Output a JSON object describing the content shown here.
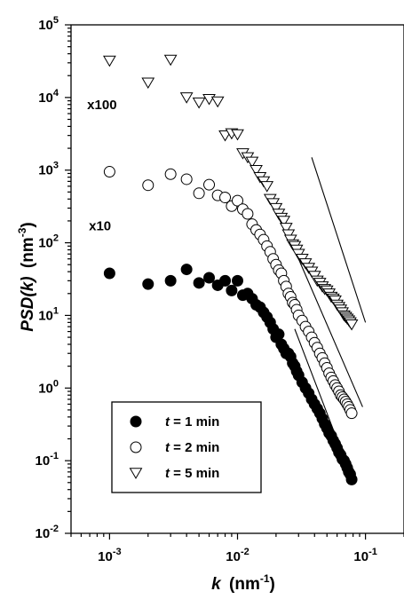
{
  "chart_data": {
    "type": "scatter",
    "title": "",
    "xlabel_var": "k",
    "xlabel_unit": "(nm",
    "xlabel_exp": "-1",
    "xlabel_close": ")",
    "ylabel_var": "PSD(k)",
    "ylabel_unit": "(nm",
    "ylabel_exp": "-3",
    "ylabel_close": ")",
    "x_scale": "log",
    "y_scale": "log",
    "xlim": [
      0.0005,
      0.2
    ],
    "ylim": [
      0.01,
      100000
    ],
    "x_ticks": [
      {
        "value": 0.001,
        "base": "10",
        "exp": "-3"
      },
      {
        "value": 0.01,
        "base": "10",
        "exp": "-2"
      },
      {
        "value": 0.1,
        "base": "10",
        "exp": "-1"
      }
    ],
    "y_ticks": [
      {
        "value": 0.01,
        "base": "10",
        "exp": "-2"
      },
      {
        "value": 0.1,
        "base": "10",
        "exp": "-1"
      },
      {
        "value": 1,
        "base": "10",
        "exp": "0"
      },
      {
        "value": 10,
        "base": "10",
        "exp": "1"
      },
      {
        "value": 100,
        "base": "10",
        "exp": "2"
      },
      {
        "value": 1000,
        "base": "10",
        "exp": "3"
      },
      {
        "value": 10000,
        "base": "10",
        "exp": "4"
      },
      {
        "value": 100000,
        "base": "10",
        "exp": "5"
      }
    ],
    "grid": false,
    "legend": {
      "placement": "bottom-left",
      "entries": [
        {
          "var": "t",
          "text": " = 1 min",
          "marker": "filled-circle"
        },
        {
          "var": "t",
          "text": " = 2 min",
          "marker": "open-circle"
        },
        {
          "var": "t",
          "text": " = 5 min",
          "marker": "open-triangle-down"
        }
      ]
    },
    "annotations": [
      {
        "text": "x100",
        "x": 0.00095,
        "y": 8000
      },
      {
        "text": "x10",
        "x": 0.00098,
        "y": 170
      }
    ],
    "series": [
      {
        "marker": "filled-circle",
        "x": [
          0.001,
          0.002,
          0.003,
          0.004,
          0.005,
          0.006,
          0.007,
          0.008,
          0.009,
          0.01,
          0.011,
          0.012,
          0.013,
          0.014,
          0.015,
          0.016,
          0.017,
          0.018,
          0.019,
          0.02,
          0.021,
          0.022,
          0.023,
          0.024,
          0.025,
          0.026,
          0.027,
          0.028,
          0.029,
          0.03,
          0.032,
          0.034,
          0.036,
          0.038,
          0.04,
          0.042,
          0.044,
          0.046,
          0.048,
          0.05,
          0.052,
          0.054,
          0.056,
          0.058,
          0.06,
          0.062,
          0.064,
          0.066,
          0.068,
          0.07,
          0.072,
          0.074,
          0.076,
          0.078
        ],
        "y": [
          38,
          27,
          30,
          43,
          28,
          33,
          26,
          30,
          22,
          30,
          19,
          20,
          17,
          14,
          13,
          11,
          9.5,
          8,
          6.5,
          5,
          5.5,
          4,
          3.5,
          3,
          3,
          2.7,
          2.2,
          2,
          1.7,
          1.5,
          1.2,
          1,
          0.85,
          0.7,
          0.6,
          0.52,
          0.45,
          0.38,
          0.32,
          0.28,
          0.24,
          0.22,
          0.19,
          0.17,
          0.15,
          0.13,
          0.12,
          0.105,
          0.1,
          0.09,
          0.08,
          0.07,
          0.065,
          0.055
        ]
      },
      {
        "marker": "open-circle",
        "x": [
          0.001,
          0.002,
          0.003,
          0.004,
          0.005,
          0.006,
          0.007,
          0.008,
          0.009,
          0.01,
          0.011,
          0.012,
          0.013,
          0.014,
          0.015,
          0.016,
          0.017,
          0.018,
          0.019,
          0.02,
          0.021,
          0.022,
          0.023,
          0.024,
          0.025,
          0.026,
          0.027,
          0.028,
          0.029,
          0.03,
          0.032,
          0.034,
          0.036,
          0.038,
          0.04,
          0.042,
          0.044,
          0.046,
          0.048,
          0.05,
          0.052,
          0.054,
          0.056,
          0.058,
          0.06,
          0.062,
          0.064,
          0.066,
          0.068,
          0.07,
          0.072,
          0.074,
          0.076,
          0.078
        ],
        "y": [
          950,
          620,
          880,
          750,
          480,
          630,
          450,
          420,
          320,
          380,
          290,
          250,
          180,
          150,
          130,
          110,
          90,
          75,
          60,
          50,
          42,
          38,
          30,
          25,
          20,
          18,
          15,
          14,
          12,
          10,
          8.5,
          7,
          6,
          5,
          4.2,
          3.6,
          3,
          2.6,
          2.2,
          1.9,
          1.6,
          1.4,
          1.25,
          1.1,
          1,
          0.9,
          0.8,
          0.75,
          0.7,
          0.65,
          0.6,
          0.55,
          0.5,
          0.45
        ]
      },
      {
        "marker": "open-triangle-down",
        "x": [
          0.001,
          0.002,
          0.003,
          0.004,
          0.005,
          0.006,
          0.007,
          0.008,
          0.009,
          0.01,
          0.011,
          0.012,
          0.013,
          0.014,
          0.015,
          0.016,
          0.017,
          0.018,
          0.019,
          0.02,
          0.021,
          0.022,
          0.023,
          0.024,
          0.025,
          0.026,
          0.027,
          0.028,
          0.029,
          0.03,
          0.032,
          0.034,
          0.036,
          0.038,
          0.04,
          0.042,
          0.044,
          0.046,
          0.048,
          0.05,
          0.052,
          0.054,
          0.056,
          0.058,
          0.06,
          0.062,
          0.064,
          0.066,
          0.068,
          0.07,
          0.072,
          0.074,
          0.076,
          0.078
        ],
        "y": [
          32000,
          16000,
          33000,
          10000,
          8500,
          9500,
          8800,
          3000,
          3200,
          3100,
          1700,
          1500,
          1300,
          1000,
          800,
          700,
          600,
          400,
          350,
          300,
          250,
          220,
          200,
          160,
          130,
          110,
          95,
          90,
          80,
          70,
          60,
          52,
          45,
          40,
          35,
          30,
          28,
          25,
          23,
          22,
          20,
          18,
          17,
          16,
          14,
          13,
          12,
          11,
          10,
          9.5,
          9,
          8.5,
          8,
          7.5
        ]
      }
    ],
    "reference_lines": [
      {
        "x1": 0.028,
        "y1": 6.5,
        "x2": 0.075,
        "y2": 0.07
      },
      {
        "x1": 0.03,
        "y1": 60,
        "x2": 0.095,
        "y2": 0.55
      },
      {
        "x1": 0.038,
        "y1": 1500,
        "x2": 0.1,
        "y2": 8
      }
    ]
  }
}
